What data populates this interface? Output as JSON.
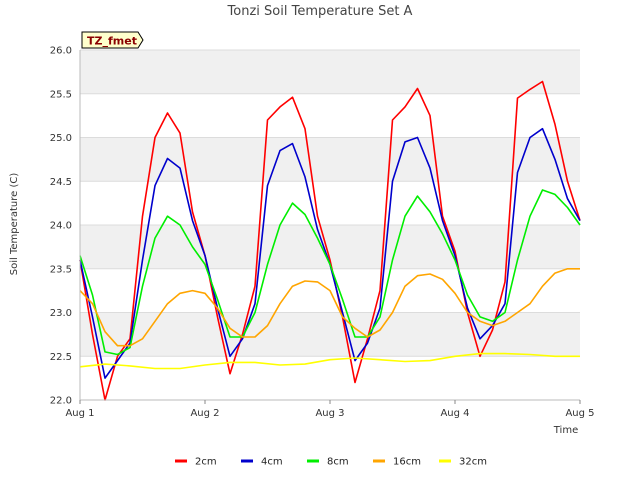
{
  "chart_data": {
    "type": "line",
    "title": "Tonzi Soil Temperature Set A",
    "xlabel": "Time",
    "ylabel": "Soil Temperature (C)",
    "badge": "TZ_fmet",
    "xlim": [
      0,
      4
    ],
    "ylim": [
      22.0,
      26.0
    ],
    "x_ticks": [
      0,
      1,
      2,
      3,
      4
    ],
    "x_tick_labels": [
      "Aug 1",
      "Aug 2",
      "Aug 3",
      "Aug 4",
      "Aug 5"
    ],
    "y_ticks": [
      22.0,
      22.5,
      23.0,
      23.5,
      24.0,
      24.5,
      25.0,
      25.5,
      26.0
    ],
    "y_tick_labels": [
      "22.0",
      "22.5",
      "23.0",
      "23.5",
      "24.0",
      "24.5",
      "25.0",
      "25.5",
      "26.0"
    ],
    "band_color": "#f0f0f0",
    "grid_color": "#dcdcdc",
    "legend_position": "bottom",
    "series": [
      {
        "name": "2cm",
        "color": "#ff0000",
        "x": [
          0.0,
          0.1,
          0.2,
          0.3,
          0.4,
          0.5,
          0.6,
          0.7,
          0.8,
          0.9,
          1.0,
          1.1,
          1.2,
          1.3,
          1.4,
          1.5,
          1.6,
          1.7,
          1.8,
          1.9,
          2.0,
          2.1,
          2.2,
          2.3,
          2.4,
          2.5,
          2.6,
          2.7,
          2.8,
          2.9,
          3.0,
          3.1,
          3.2,
          3.3,
          3.4,
          3.5,
          3.6,
          3.7,
          3.8,
          3.9,
          4.0
        ],
        "values": [
          23.6,
          22.75,
          22.0,
          22.5,
          22.7,
          24.1,
          25.0,
          25.28,
          25.05,
          24.15,
          23.65,
          22.95,
          22.3,
          22.75,
          23.3,
          25.2,
          25.35,
          25.46,
          25.1,
          24.1,
          23.6,
          22.95,
          22.2,
          22.7,
          23.25,
          25.2,
          25.35,
          25.56,
          25.25,
          24.1,
          23.7,
          23.0,
          22.5,
          22.8,
          23.35,
          25.45,
          25.55,
          25.64,
          25.15,
          24.5,
          24.05
        ]
      },
      {
        "name": "4cm",
        "color": "#0000cc",
        "x": [
          0.0,
          0.1,
          0.2,
          0.3,
          0.4,
          0.5,
          0.6,
          0.7,
          0.8,
          0.9,
          1.0,
          1.1,
          1.2,
          1.3,
          1.4,
          1.5,
          1.6,
          1.7,
          1.8,
          1.9,
          2.0,
          2.1,
          2.2,
          2.3,
          2.4,
          2.5,
          2.6,
          2.7,
          2.8,
          2.9,
          3.0,
          3.1,
          3.2,
          3.3,
          3.4,
          3.5,
          3.6,
          3.7,
          3.8,
          3.9,
          4.0
        ],
        "values": [
          23.6,
          22.95,
          22.25,
          22.45,
          22.65,
          23.6,
          24.45,
          24.76,
          24.65,
          24.05,
          23.65,
          23.05,
          22.5,
          22.7,
          23.1,
          24.45,
          24.85,
          24.93,
          24.55,
          23.95,
          23.55,
          23.0,
          22.45,
          22.65,
          23.05,
          24.5,
          24.95,
          25.0,
          24.65,
          24.05,
          23.65,
          23.05,
          22.7,
          22.85,
          23.1,
          24.6,
          25.0,
          25.1,
          24.75,
          24.3,
          24.05
        ]
      },
      {
        "name": "8cm",
        "color": "#00ee00",
        "x": [
          0.0,
          0.1,
          0.2,
          0.3,
          0.4,
          0.5,
          0.6,
          0.7,
          0.8,
          0.9,
          1.0,
          1.1,
          1.2,
          1.3,
          1.4,
          1.5,
          1.6,
          1.7,
          1.8,
          1.9,
          2.0,
          2.1,
          2.2,
          2.3,
          2.4,
          2.5,
          2.6,
          2.7,
          2.8,
          2.9,
          3.0,
          3.1,
          3.2,
          3.3,
          3.4,
          3.5,
          3.6,
          3.7,
          3.8,
          3.9,
          4.0
        ],
        "values": [
          23.65,
          23.2,
          22.55,
          22.52,
          22.6,
          23.3,
          23.85,
          24.1,
          24.0,
          23.75,
          23.55,
          23.15,
          22.72,
          22.72,
          23.0,
          23.55,
          24.0,
          24.25,
          24.12,
          23.85,
          23.55,
          23.15,
          22.72,
          22.72,
          22.95,
          23.6,
          24.1,
          24.33,
          24.15,
          23.9,
          23.6,
          23.2,
          22.95,
          22.9,
          23.0,
          23.6,
          24.1,
          24.4,
          24.35,
          24.2,
          24.0
        ]
      },
      {
        "name": "16cm",
        "color": "#ffa500",
        "x": [
          0.0,
          0.1,
          0.2,
          0.3,
          0.4,
          0.5,
          0.6,
          0.7,
          0.8,
          0.9,
          1.0,
          1.1,
          1.2,
          1.3,
          1.4,
          1.5,
          1.6,
          1.7,
          1.8,
          1.9,
          2.0,
          2.1,
          2.2,
          2.3,
          2.4,
          2.5,
          2.6,
          2.7,
          2.8,
          2.9,
          3.0,
          3.1,
          3.2,
          3.3,
          3.4,
          3.5,
          3.6,
          3.7,
          3.8,
          3.9,
          4.0
        ],
        "values": [
          23.25,
          23.1,
          22.78,
          22.62,
          22.62,
          22.7,
          22.9,
          23.1,
          23.22,
          23.25,
          23.22,
          23.05,
          22.82,
          22.72,
          22.72,
          22.85,
          23.1,
          23.3,
          23.36,
          23.35,
          23.25,
          22.95,
          22.82,
          22.72,
          22.8,
          23.0,
          23.3,
          23.42,
          23.44,
          23.38,
          23.22,
          23.0,
          22.9,
          22.85,
          22.9,
          23.0,
          23.1,
          23.3,
          23.45,
          23.5,
          23.5
        ]
      },
      {
        "name": "32cm",
        "color": "#ffff00",
        "x": [
          0.0,
          0.2,
          0.4,
          0.6,
          0.8,
          1.0,
          1.2,
          1.4,
          1.6,
          1.8,
          2.0,
          2.2,
          2.4,
          2.6,
          2.8,
          3.0,
          3.2,
          3.4,
          3.6,
          3.8,
          4.0
        ],
        "values": [
          22.38,
          22.41,
          22.39,
          22.36,
          22.36,
          22.4,
          22.43,
          22.43,
          22.4,
          22.41,
          22.46,
          22.48,
          22.46,
          22.44,
          22.45,
          22.5,
          22.53,
          22.53,
          22.52,
          22.5,
          22.5
        ]
      }
    ]
  }
}
